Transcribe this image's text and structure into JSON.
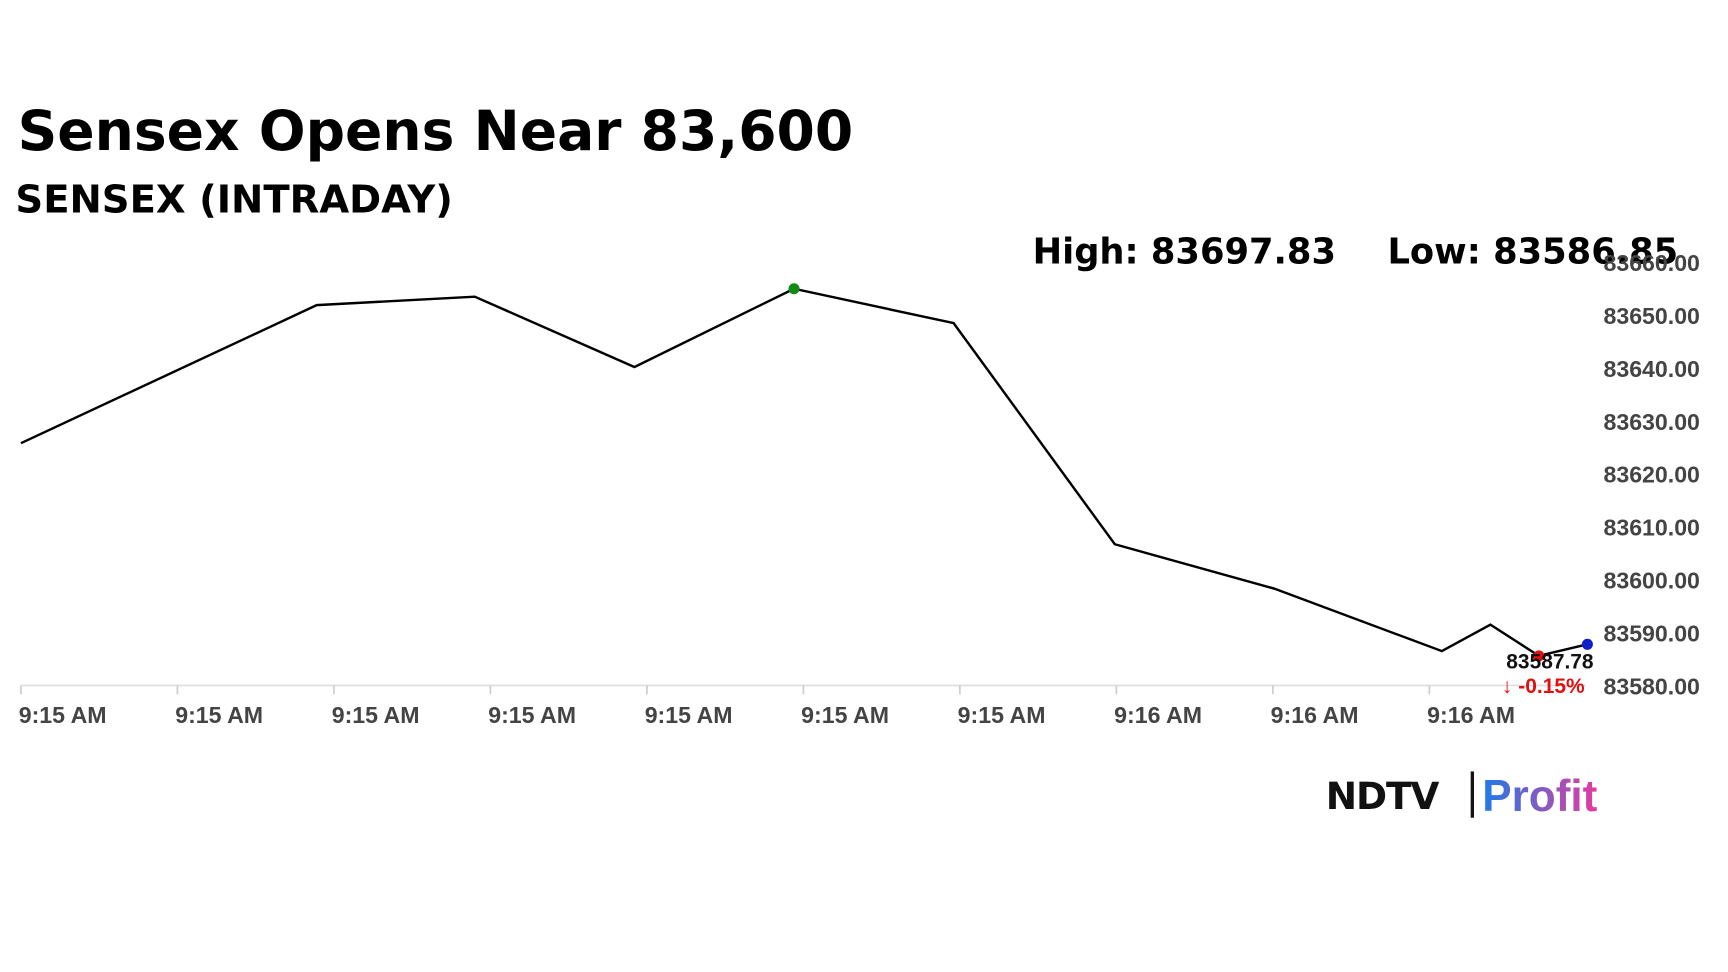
{
  "chart_data": {
    "type": "line",
    "title": "Sensex Opens Near 83,600",
    "subtitle": "SENSEX (INTRADAY)",
    "high_label": "High: 83697.83",
    "low_label": "Low: 83586.85",
    "x": [
      0,
      1.89,
      2.9,
      3.92,
      4.94,
      5.96,
      6.99,
      8.01,
      9.08,
      9.39,
      9.7,
      10.01
    ],
    "series": [
      {
        "color": "#000000",
        "values": [
          83625.8,
          83651.9,
          83653.5,
          83640.2,
          83655.0,
          83648.5,
          83606.7,
          83598.3,
          83586.5,
          83591.5,
          83585.6,
          83587.78
        ]
      }
    ],
    "markers": [
      {
        "index": 4,
        "color": "#138a13"
      },
      {
        "index": 10,
        "color": "#e01010"
      },
      {
        "index": 11,
        "color": "#1020c8"
      }
    ],
    "last_value_index": 11,
    "change_label": "↓ -0.15%",
    "xlim": [
      0,
      10
    ],
    "xticks": [
      {
        "value": 0,
        "label": "9:15 AM"
      },
      {
        "value": 1,
        "label": "9:15 AM"
      },
      {
        "value": 2,
        "label": "9:15 AM"
      },
      {
        "value": 3,
        "label": "9:15 AM"
      },
      {
        "value": 4,
        "label": "9:15 AM"
      },
      {
        "value": 5,
        "label": "9:15 AM"
      },
      {
        "value": 6,
        "label": "9:15 AM"
      },
      {
        "value": 7,
        "label": "9:16 AM"
      },
      {
        "value": 8,
        "label": "9:16 AM"
      },
      {
        "value": 9,
        "label": "9:16 AM"
      }
    ],
    "ylim": [
      83580,
      83660
    ],
    "yticks": [
      {
        "value": 83580,
        "label": "83580.00"
      },
      {
        "value": 83590,
        "label": "83590.00"
      },
      {
        "value": 83600,
        "label": "83600.00"
      },
      {
        "value": 83610,
        "label": "83610.00"
      },
      {
        "value": 83620,
        "label": "83620.00"
      },
      {
        "value": 83630,
        "label": "83630.00"
      },
      {
        "value": 83640,
        "label": "83640.00"
      },
      {
        "value": 83650,
        "label": "83650.00"
      },
      {
        "value": 83660,
        "label": "83660.00"
      }
    ]
  },
  "logo": {
    "left": "NDTV",
    "right": "Profit"
  }
}
